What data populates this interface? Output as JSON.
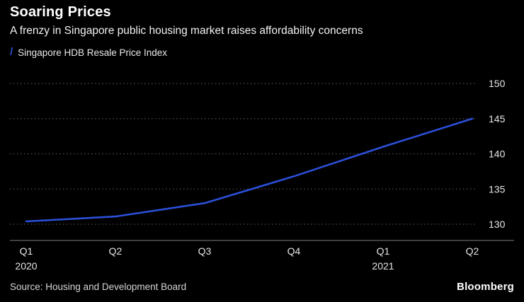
{
  "header": {
    "title": "Soaring Prices",
    "subtitle": "A frenzy in Singapore public housing market raises affordability concerns"
  },
  "legend": {
    "mark": "/",
    "label": "Singapore HDB Resale Price Index"
  },
  "colors": {
    "background": "#000000",
    "line": "#2b50d9",
    "grid": "#4f4f4f",
    "axis": "#7d7d7d",
    "tick_text": "#e6e6e6"
  },
  "chart_data": {
    "type": "line",
    "title": "Soaring Prices",
    "x": [
      "Q1 2020",
      "Q2 2020",
      "Q3 2020",
      "Q4 2020",
      "Q1 2021",
      "Q2 2021"
    ],
    "values": [
      130.4,
      131.1,
      133.0,
      136.8,
      141.0,
      145.0
    ],
    "series": [
      {
        "name": "Singapore HDB Resale Price Index",
        "values": [
          130.4,
          131.1,
          133.0,
          136.8,
          141.0,
          145.0
        ]
      }
    ],
    "xlabel": "",
    "ylabel": "",
    "ylim": [
      130,
      150
    ],
    "yticks": [
      130,
      135,
      140,
      145,
      150
    ],
    "xticks": [
      "Q1",
      "Q2",
      "Q3",
      "Q4",
      "Q1",
      "Q2"
    ],
    "year_labels": [
      {
        "text": "2020",
        "index": 0
      },
      {
        "text": "2021",
        "index": 4
      }
    ],
    "grid": "dotted horizontal",
    "legend_position": "top-left",
    "y_axis_side": "right"
  },
  "footer": {
    "source": "Source: Housing and Development Board",
    "logo": "Bloomberg"
  }
}
